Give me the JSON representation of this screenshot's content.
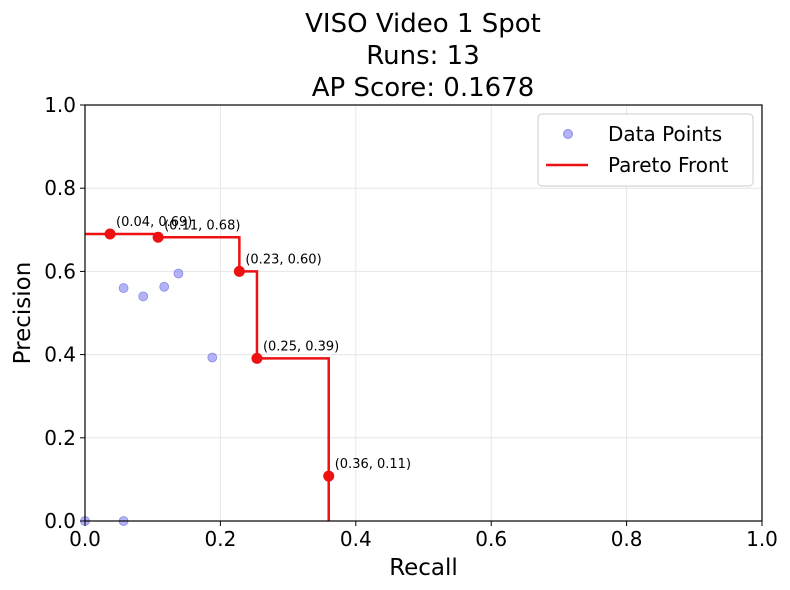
{
  "chart_data": {
    "type": "scatter",
    "title_lines": [
      "VISO Video 1 Spot",
      "Runs: 13",
      "AP Score: 0.1678"
    ],
    "xlabel": "Recall",
    "ylabel": "Precision",
    "xlim": [
      0,
      1
    ],
    "ylim": [
      0,
      1
    ],
    "xticks": [
      "0.0",
      "0.2",
      "0.4",
      "0.6",
      "0.8",
      "1.0"
    ],
    "yticks": [
      "0.0",
      "0.2",
      "0.4",
      "0.6",
      "0.8",
      "1.0"
    ],
    "grid": true,
    "legend": {
      "position": "top-right",
      "entries": [
        {
          "label": "Data Points",
          "kind": "marker",
          "color": "#8080ee"
        },
        {
          "label": "Pareto Front",
          "kind": "line",
          "color": "#ee1111"
        }
      ]
    },
    "series": [
      {
        "name": "Data Points",
        "kind": "scatter",
        "color": "#8080ee",
        "points": [
          {
            "x": 0.0,
            "y": 0.0
          },
          {
            "x": 0.057,
            "y": 0.0
          },
          {
            "x": 0.057,
            "y": 0.56
          },
          {
            "x": 0.086,
            "y": 0.54
          },
          {
            "x": 0.117,
            "y": 0.563
          },
          {
            "x": 0.138,
            "y": 0.595
          },
          {
            "x": 0.188,
            "y": 0.393
          }
        ]
      },
      {
        "name": "Pareto Front",
        "kind": "step",
        "color": "#ee1111",
        "start": {
          "x": 0.0,
          "y": 0.69
        },
        "end": {
          "x": 0.36,
          "y": 0.0
        },
        "points": [
          {
            "x": 0.037,
            "y": 0.69,
            "label": "(0.04, 0.69)"
          },
          {
            "x": 0.108,
            "y": 0.682,
            "label": "(0.11, 0.68)"
          },
          {
            "x": 0.228,
            "y": 0.6,
            "label": "(0.23, 0.60)"
          },
          {
            "x": 0.254,
            "y": 0.391,
            "label": "(0.25, 0.39)"
          },
          {
            "x": 0.36,
            "y": 0.108,
            "label": "(0.36, 0.11)"
          }
        ]
      }
    ]
  }
}
